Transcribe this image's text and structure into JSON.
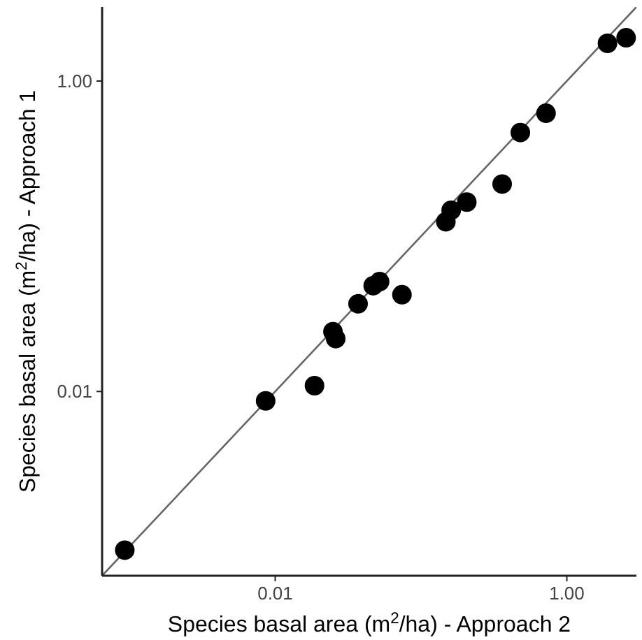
{
  "chart_data": {
    "type": "scatter",
    "xlabel": "Species basal area (m$^{2}$/ha) - Approach 2",
    "ylabel": "Species basal area (m$^{2}$/ha) - Approach 1",
    "log": "xy",
    "grid": false,
    "xlim": [
      0.00065,
      3
    ],
    "ylim": [
      0.00065,
      3
    ],
    "xticks": [
      0.01,
      {
        "value": 1,
        "label": "1.00"
      }
    ],
    "yticks": [
      0.01,
      {
        "value": 1,
        "label": "1.00"
      }
    ],
    "series": [
      {
        "color": "#000000",
        "marker": "circle",
        "x": [
          0.00093,
          0.0086,
          0.0186,
          0.0249,
          0.026,
          0.037,
          0.047,
          0.052,
          0.074,
          0.148,
          0.161,
          0.206,
          0.36,
          0.48,
          0.72,
          1.9,
          2.55
        ],
        "values": [
          0.00095,
          0.0087,
          0.0109,
          0.0243,
          0.0219,
          0.0367,
          0.048,
          0.051,
          0.042,
          0.124,
          0.147,
          0.166,
          0.217,
          0.466,
          0.62,
          1.75,
          1.9
        ]
      },
      {
        "type": "line",
        "color": "#666666",
        "marker": "none",
        "line_style": "solid",
        "x": [
          0.00065,
          3
        ],
        "values": [
          0.00065,
          3
        ]
      }
    ]
  }
}
